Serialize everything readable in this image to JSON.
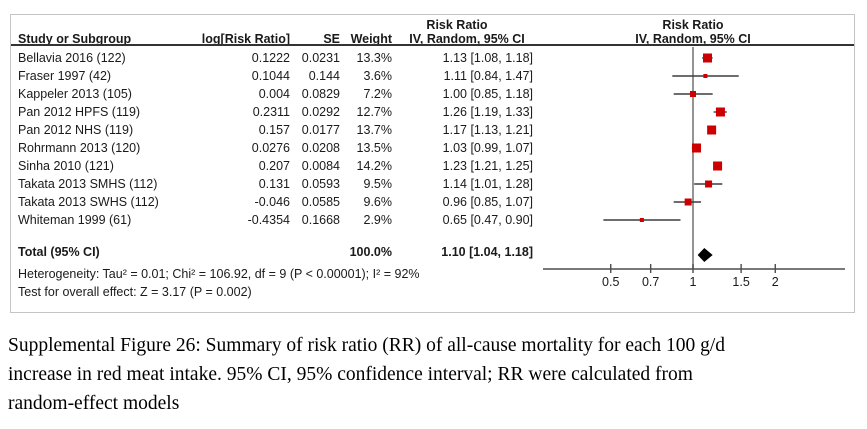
{
  "figure": {
    "columns": {
      "study": "Study or Subgroup",
      "log_rr": "log[Risk Ratio]",
      "se": "SE",
      "weight": "Weight",
      "ci_header_top": "Risk Ratio",
      "ci_header_sub": "IV, Random, 95% CI",
      "plot_header_top": "Risk Ratio",
      "plot_header_sub": "IV, Random, 95% CI"
    },
    "colors": {
      "square": "#cc0000",
      "ci_line": "#3d3d3d",
      "ref_line": "#7a7a7a",
      "axis": "#4d4d4d",
      "header_rule": "#333333",
      "diamond": "#000000",
      "border": "#c4c4c4"
    }
  },
  "chart_data": {
    "type": "forest",
    "x_scale": "log",
    "x_ticks": [
      0.5,
      0.7,
      1,
      1.5,
      2
    ],
    "x_tick_labels": [
      "0.5",
      "0.7",
      "1",
      "1.5",
      "2"
    ],
    "studies": [
      {
        "name": "Bellavia 2016 (122)",
        "log_rr": "0.1222",
        "se": "0.0231",
        "weight": "13.3%",
        "weight_value": 13.3,
        "rr": 1.13,
        "ci_low": 1.08,
        "ci_high": 1.18,
        "ci_label": "1.13 [1.08, 1.18]"
      },
      {
        "name": "Fraser 1997 (42)",
        "log_rr": "0.1044",
        "se": "0.144",
        "weight": "3.6%",
        "weight_value": 3.6,
        "rr": 1.11,
        "ci_low": 0.84,
        "ci_high": 1.47,
        "ci_label": "1.11 [0.84, 1.47]"
      },
      {
        "name": "Kappeler 2013 (105)",
        "log_rr": "0.004",
        "se": "0.0829",
        "weight": "7.2%",
        "weight_value": 7.2,
        "rr": 1.0,
        "ci_low": 0.85,
        "ci_high": 1.18,
        "ci_label": "1.00 [0.85, 1.18]"
      },
      {
        "name": "Pan 2012 HPFS (119)",
        "log_rr": "0.2311",
        "se": "0.0292",
        "weight": "12.7%",
        "weight_value": 12.7,
        "rr": 1.26,
        "ci_low": 1.19,
        "ci_high": 1.33,
        "ci_label": "1.26 [1.19, 1.33]"
      },
      {
        "name": "Pan 2012 NHS (119)",
        "log_rr": "0.157",
        "se": "0.0177",
        "weight": "13.7%",
        "weight_value": 13.7,
        "rr": 1.17,
        "ci_low": 1.13,
        "ci_high": 1.21,
        "ci_label": "1.17 [1.13, 1.21]"
      },
      {
        "name": "Rohrmann 2013 (120)",
        "log_rr": "0.0276",
        "se": "0.0208",
        "weight": "13.5%",
        "weight_value": 13.5,
        "rr": 1.03,
        "ci_low": 0.99,
        "ci_high": 1.07,
        "ci_label": "1.03 [0.99, 1.07]"
      },
      {
        "name": "Sinha 2010 (121)",
        "log_rr": "0.207",
        "se": "0.0084",
        "weight": "14.2%",
        "weight_value": 14.2,
        "rr": 1.23,
        "ci_low": 1.21,
        "ci_high": 1.25,
        "ci_label": "1.23 [1.21, 1.25]"
      },
      {
        "name": "Takata 2013 SMHS (112)",
        "log_rr": "0.131",
        "se": "0.0593",
        "weight": "9.5%",
        "weight_value": 9.5,
        "rr": 1.14,
        "ci_low": 1.01,
        "ci_high": 1.28,
        "ci_label": "1.14 [1.01, 1.28]"
      },
      {
        "name": "Takata 2013 SWHS (112)",
        "log_rr": "-0.046",
        "se": "0.0585",
        "weight": "9.6%",
        "weight_value": 9.6,
        "rr": 0.96,
        "ci_low": 0.85,
        "ci_high": 1.07,
        "ci_label": "0.96 [0.85, 1.07]"
      },
      {
        "name": "Whiteman 1999 (61)",
        "log_rr": "-0.4354",
        "se": "0.1668",
        "weight": "2.9%",
        "weight_value": 2.9,
        "rr": 0.65,
        "ci_low": 0.47,
        "ci_high": 0.9,
        "ci_label": "0.65 [0.47, 0.90]"
      }
    ],
    "total": {
      "label": "Total (95% CI)",
      "weight": "100.0%",
      "rr": 1.1,
      "ci_low": 1.04,
      "ci_high": 1.18,
      "ci_label": "1.10 [1.04, 1.18]"
    },
    "heterogeneity": "Heterogeneity: Tau² = 0.01; Chi² = 106.92, df = 9 (P < 0.00001); I² = 92%",
    "overall_effect": "Test for overall effect: Z = 3.17 (P = 0.002)"
  },
  "caption_lines": [
    "Supplemental Figure 26: Summary of risk ratio (RR) of all-cause mortality for each 100 g/d",
    "increase in red meat intake. 95% CI, 95% confidence interval; RR were calculated from",
    "random-effect models"
  ]
}
